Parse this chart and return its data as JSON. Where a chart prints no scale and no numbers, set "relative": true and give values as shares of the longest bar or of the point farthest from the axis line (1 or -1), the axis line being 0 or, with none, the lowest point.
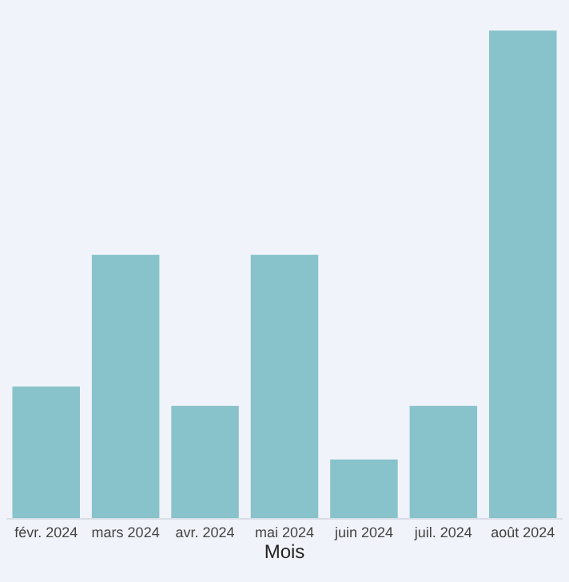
{
  "chart_data": {
    "type": "bar",
    "relative": true,
    "xlabel": "Mois",
    "categories": [
      "févr. 2024",
      "mars 2024",
      "avr. 2024",
      "mai 2024",
      "juin 2024",
      "juil. 2024",
      "août 2024"
    ],
    "values": [
      0.27,
      0.54,
      0.23,
      0.54,
      0.12,
      0.23,
      1
    ],
    "color": "#88c3cb"
  }
}
